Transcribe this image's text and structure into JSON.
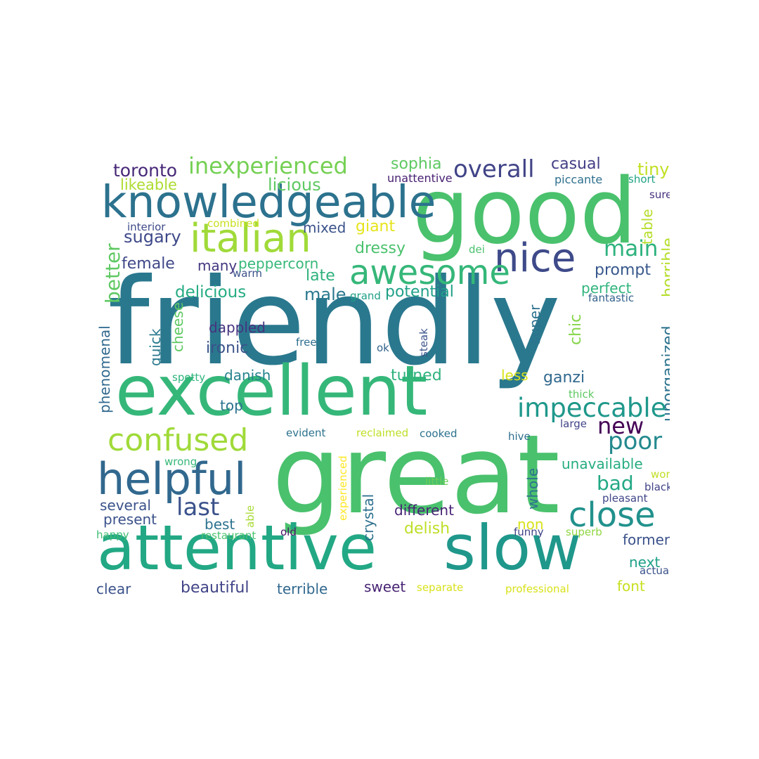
{
  "words": [
    {
      "text": "friendly",
      "color": "#2a788e"
    },
    {
      "text": "great",
      "color": "#4ac16d"
    },
    {
      "text": "good",
      "color": "#4ac16d"
    },
    {
      "text": "excellent",
      "color": "#35b779"
    },
    {
      "text": "attentive",
      "color": "#22a884"
    },
    {
      "text": "slow",
      "color": "#1f988b"
    },
    {
      "text": "knowledgeable",
      "color": "#2c728e"
    },
    {
      "text": "helpful",
      "color": "#31688e"
    },
    {
      "text": "nice",
      "color": "#3e4a89"
    },
    {
      "text": "awesome",
      "color": "#35b779"
    },
    {
      "text": "italian",
      "color": "#a0da39"
    },
    {
      "text": "confused",
      "color": "#a0da39"
    },
    {
      "text": "close",
      "color": "#21918c"
    },
    {
      "text": "impeccable",
      "color": "#1f988b"
    },
    {
      "text": "inexperienced",
      "color": "#75d054"
    },
    {
      "text": "overall",
      "color": "#414487"
    },
    {
      "text": "poor",
      "color": "#23898e"
    },
    {
      "text": "new",
      "color": "#440154"
    },
    {
      "text": "last",
      "color": "#3b528b"
    },
    {
      "text": "main",
      "color": "#2db27d"
    },
    {
      "text": "bad",
      "color": "#22a884"
    },
    {
      "text": "toronto",
      "color": "#482878"
    },
    {
      "text": "better",
      "color": "#5ec962"
    },
    {
      "text": "sophia",
      "color": "#5ec962"
    },
    {
      "text": "casual",
      "color": "#433e85"
    },
    {
      "text": "tiny",
      "color": "#c2df23"
    },
    {
      "text": "likeable",
      "color": "#addc30"
    },
    {
      "text": "licious",
      "color": "#5ec962"
    },
    {
      "text": "unattentive",
      "color": "#482173"
    },
    {
      "text": "piccante",
      "color": "#2e6f8e"
    },
    {
      "text": "short",
      "color": "#20a386"
    },
    {
      "text": "sure",
      "color": "#46317e"
    },
    {
      "text": "interior",
      "color": "#3e4a89"
    },
    {
      "text": "combined",
      "color": "#c8e020"
    },
    {
      "text": "mixed",
      "color": "#3b528b"
    },
    {
      "text": "giant",
      "color": "#e5e419"
    },
    {
      "text": "table",
      "color": "#b5de2b"
    },
    {
      "text": "horrible",
      "color": "#b5de2b"
    },
    {
      "text": "sugary",
      "color": "#3e4989"
    },
    {
      "text": "dressy",
      "color": "#4ac16d"
    },
    {
      "text": "dei",
      "color": "#4ac16d"
    },
    {
      "text": "female",
      "color": "#3f4788"
    },
    {
      "text": "many",
      "color": "#453781"
    },
    {
      "text": "peppercorn",
      "color": "#37b878"
    },
    {
      "text": "warm",
      "color": "#3b528b"
    },
    {
      "text": "late",
      "color": "#2db27d"
    },
    {
      "text": "prompt",
      "color": "#38588c"
    },
    {
      "text": "delicious",
      "color": "#25ab82"
    },
    {
      "text": "male",
      "color": "#2a788e"
    },
    {
      "text": "grand",
      "color": "#1fa088"
    },
    {
      "text": "potential",
      "color": "#1fa088"
    },
    {
      "text": "perfect",
      "color": "#2fb47c"
    },
    {
      "text": "fantastic",
      "color": "#34618d"
    },
    {
      "text": "cheese",
      "color": "#5ec962"
    },
    {
      "text": "dappled",
      "color": "#46337f"
    },
    {
      "text": "quick",
      "color": "#2a788e"
    },
    {
      "text": "phenomenal",
      "color": "#31688e"
    },
    {
      "text": "ironic",
      "color": "#3b528b"
    },
    {
      "text": "free",
      "color": "#2e6e8e"
    },
    {
      "text": "ok",
      "color": "#33638d"
    },
    {
      "text": "steak",
      "color": "#3b528b"
    },
    {
      "text": "super",
      "color": "#2c728e"
    },
    {
      "text": "chic",
      "color": "#86d549"
    },
    {
      "text": "unorganized",
      "color": "#2c728e"
    },
    {
      "text": "danish",
      "color": "#26828e"
    },
    {
      "text": "turned",
      "color": "#2db27d"
    },
    {
      "text": "less",
      "color": "#d8e219"
    },
    {
      "text": "ganzi",
      "color": "#31688e"
    },
    {
      "text": "spotty",
      "color": "#2fb47c"
    },
    {
      "text": "thick",
      "color": "#5ec962"
    },
    {
      "text": "top",
      "color": "#2c728e"
    },
    {
      "text": "large",
      "color": "#414487"
    },
    {
      "text": "evident",
      "color": "#2c728e"
    },
    {
      "text": "reclaimed",
      "color": "#bddf26"
    },
    {
      "text": "cooked",
      "color": "#2c728e"
    },
    {
      "text": "hive",
      "color": "#2e6e8e"
    },
    {
      "text": "wrong",
      "color": "#37b878"
    },
    {
      "text": "unavailable",
      "color": "#26ad81"
    },
    {
      "text": "experienced",
      "color": "#fde725"
    },
    {
      "text": "crystal",
      "color": "#2d708e"
    },
    {
      "text": "whole",
      "color": "#2c728e"
    },
    {
      "text": "worst",
      "color": "#c2df23"
    },
    {
      "text": "little",
      "color": "#6ccd5a"
    },
    {
      "text": "black",
      "color": "#414487"
    },
    {
      "text": "several",
      "color": "#3b528b"
    },
    {
      "text": "present",
      "color": "#3b528b"
    },
    {
      "text": "different",
      "color": "#482475"
    },
    {
      "text": "able",
      "color": "#a8db34"
    },
    {
      "text": "pleasant",
      "color": "#404688"
    },
    {
      "text": "best",
      "color": "#2c728e"
    },
    {
      "text": "delish",
      "color": "#bddf26"
    },
    {
      "text": "non",
      "color": "#d8e219"
    },
    {
      "text": "happy",
      "color": "#3dbc74"
    },
    {
      "text": "restaurant",
      "color": "#4ac16d"
    },
    {
      "text": "old",
      "color": "#471365"
    },
    {
      "text": "funny",
      "color": "#414487"
    },
    {
      "text": "superb",
      "color": "#90d743"
    },
    {
      "text": "former",
      "color": "#3b528b"
    },
    {
      "text": "next",
      "color": "#1fa088"
    },
    {
      "text": "actual",
      "color": "#3b528b"
    },
    {
      "text": "clear",
      "color": "#3b528b"
    },
    {
      "text": "beautiful",
      "color": "#414487"
    },
    {
      "text": "terrible",
      "color": "#31688e"
    },
    {
      "text": "sweet",
      "color": "#482475"
    },
    {
      "text": "separate",
      "color": "#d8e219"
    },
    {
      "text": "professional",
      "color": "#d8e219"
    },
    {
      "text": "font",
      "color": "#c8e020"
    }
  ]
}
